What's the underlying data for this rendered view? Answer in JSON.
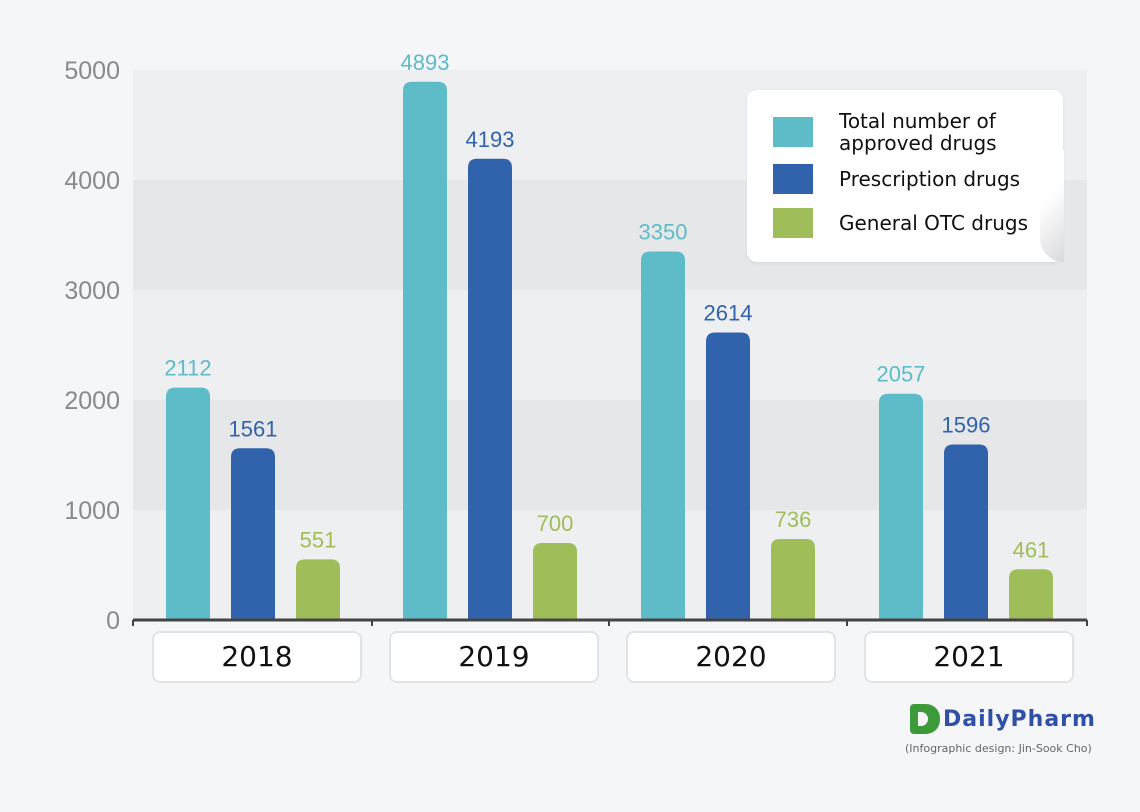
{
  "chart_data": {
    "type": "bar",
    "categories": [
      "2018",
      "2019",
      "2020",
      "2021"
    ],
    "series": [
      {
        "name": "Total number of approved drugs",
        "values": [
          2112,
          4893,
          3350,
          2057
        ],
        "color": "#5ebbc8"
      },
      {
        "name": "Prescription drugs",
        "values": [
          1561,
          4193,
          2614,
          1596
        ],
        "color": "#3163ad"
      },
      {
        "name": "General OTC drugs",
        "values": [
          551,
          700,
          736,
          461
        ],
        "color": "#9fbd58"
      }
    ],
    "yticks": [
      "0",
      "1000",
      "2000",
      "3000",
      "4000",
      "5000"
    ],
    "ylim": [
      0,
      5000
    ],
    "grid": "alternating bands",
    "legend_position": "top-right",
    "value_label_colors": [
      "#5ebbc8",
      "#3163ad",
      "#9fbd58"
    ]
  },
  "legend": {
    "items": [
      {
        "label": "Total number of approved drugs",
        "color": "#5ebbc8"
      },
      {
        "label": "Prescription drugs",
        "color": "#3163ad"
      },
      {
        "label": "General OTC drugs",
        "color": "#9fbd58"
      }
    ]
  },
  "branding": {
    "logo_text": "DailyPharm",
    "credit": "(Infographic design: Jin-Sook Cho)"
  }
}
